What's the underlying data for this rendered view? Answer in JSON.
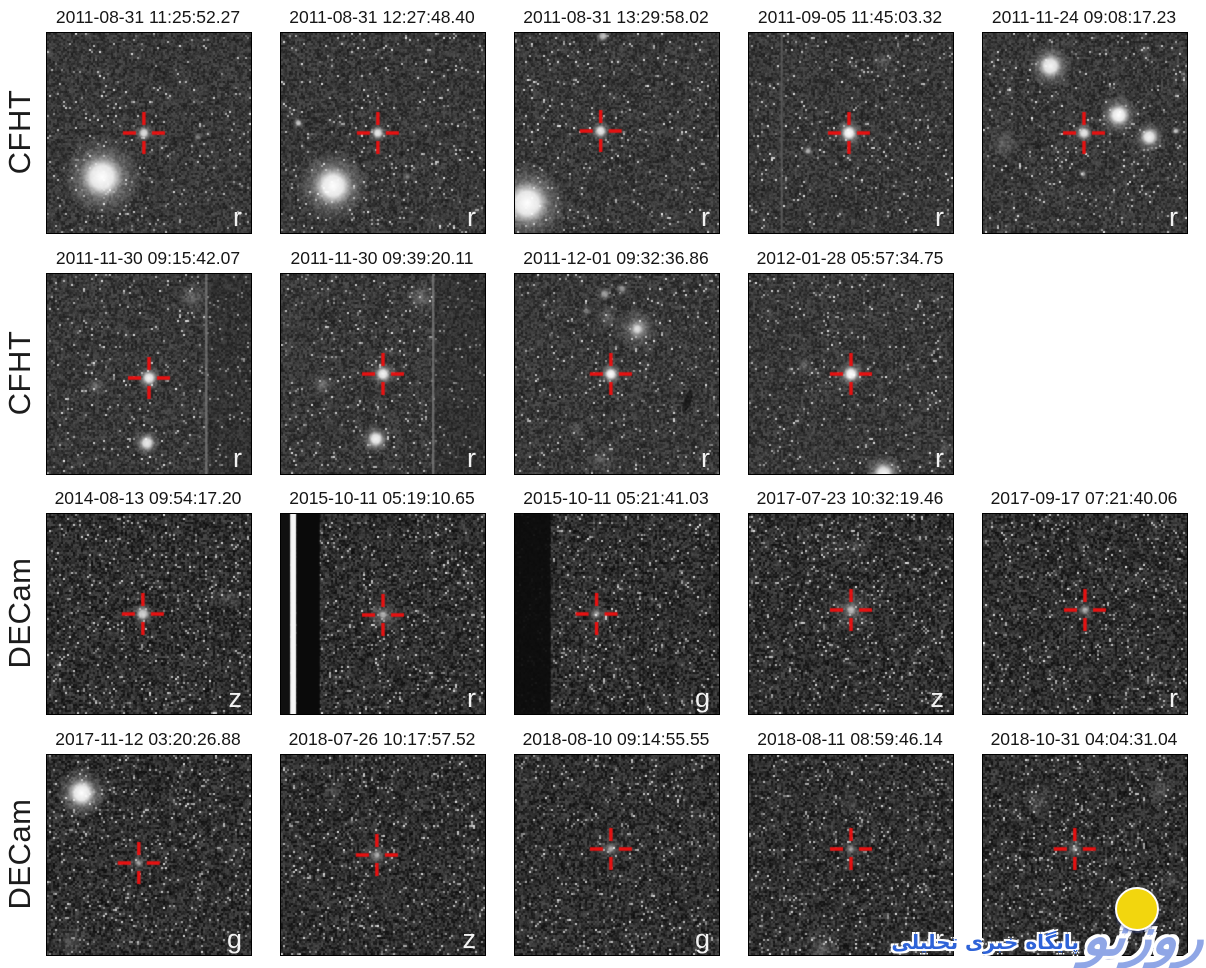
{
  "figure": {
    "rows": [
      {
        "label": "CFHT",
        "panels": [
          {
            "title": "2011-08-31 11:25:52.27",
            "band": "r",
            "cross": [
              0.475,
              0.5
            ],
            "stars": [
              [
                0.27,
                0.72,
                20,
                1,
                "core"
              ],
              [
                0.475,
                0.5,
                5,
                0.85,
                "core"
              ],
              [
                0.74,
                0.52,
                2.5,
                0.4,
                "core"
              ]
            ]
          },
          {
            "title": "2011-08-31 12:27:48.40",
            "band": "r",
            "cross": [
              0.475,
              0.5
            ],
            "stars": [
              [
                0.255,
                0.765,
                18,
                1,
                "core"
              ],
              [
                0.475,
                0.5,
                5,
                0.9,
                "core"
              ],
              [
                0.085,
                0.45,
                3,
                0.75,
                "core"
              ],
              [
                0.62,
                0.72,
                2.5,
                0.4,
                "core"
              ]
            ]
          },
          {
            "title": "2011-08-31 13:29:58.02",
            "band": "r",
            "cross": [
              0.42,
              0.49
            ],
            "stars": [
              [
                0.06,
                0.85,
                20,
                1,
                "core"
              ],
              [
                0.42,
                0.49,
                5.5,
                0.9,
                "core"
              ],
              [
                0.43,
                0.015,
                4,
                0.7,
                "core"
              ]
            ]
          },
          {
            "title": "2011-09-05 11:45:03.32",
            "band": "r",
            "cross": [
              0.49,
              0.5
            ],
            "lines": [
              {
                "x": 0.155,
                "w": 0.01,
                "c": "rgba(90,90,90,0.95)"
              }
            ],
            "stars": [
              [
                0.49,
                0.5,
                7,
                1,
                "core"
              ],
              [
                0.29,
                0.59,
                3,
                0.65,
                "core"
              ],
              [
                0.66,
                0.14,
                6,
                0.35,
                "fuzzy"
              ]
            ]
          },
          {
            "title": "2011-11-24 09:08:17.23",
            "band": "r",
            "cross": [
              0.495,
              0.5
            ],
            "stars": [
              [
                0.33,
                0.165,
                11,
                0.95,
                "core"
              ],
              [
                0.665,
                0.41,
                10,
                1,
                "core"
              ],
              [
                0.815,
                0.52,
                8,
                0.95,
                "core"
              ],
              [
                0.945,
                0.49,
                2.5,
                0.75,
                "core"
              ],
              [
                0.1,
                0.555,
                9,
                0.45,
                "fuzzy"
              ],
              [
                0.79,
                0.085,
                4,
                0.35,
                "fuzzy"
              ],
              [
                0.495,
                0.5,
                5.5,
                0.9,
                "core"
              ],
              [
                0.49,
                0.705,
                2.5,
                0.55,
                "core"
              ]
            ]
          }
        ]
      },
      {
        "label": "CFHT",
        "panels": [
          {
            "title": "2011-11-30 09:15:42.07",
            "band": "r",
            "cross": [
              0.5,
              0.52
            ],
            "lines": [
              {
                "x": 0.775,
                "w": 0.012,
                "c": "rgba(125,125,125,0.75)"
              }
            ],
            "rects": [
              {
                "x": 0.787,
                "w": 0.213,
                "c": "rgba(35,35,35,0.28)"
              }
            ],
            "stars": [
              [
                0.71,
                0.115,
                8,
                0.5,
                "fuzzy"
              ],
              [
                0.24,
                0.56,
                6,
                0.5,
                "fuzzy"
              ],
              [
                0.49,
                0.845,
                7,
                0.9,
                "core"
              ],
              [
                0.5,
                0.52,
                6.5,
                0.95,
                "core"
              ]
            ]
          },
          {
            "title": "2011-11-30 09:39:20.11",
            "band": "r",
            "cross": [
              0.5,
              0.5
            ],
            "lines": [
              {
                "x": 0.74,
                "w": 0.012,
                "c": "rgba(125,125,125,0.75)"
              }
            ],
            "rects": [
              {
                "x": 0.752,
                "w": 0.248,
                "c": "rgba(35,35,35,0.28)"
              }
            ],
            "stars": [
              [
                0.69,
                0.115,
                8,
                0.55,
                "fuzzy"
              ],
              [
                0.205,
                0.55,
                6,
                0.6,
                "fuzzy"
              ],
              [
                0.465,
                0.825,
                7.5,
                0.95,
                "core"
              ],
              [
                0.5,
                0.5,
                6.5,
                0.95,
                "core"
              ]
            ]
          },
          {
            "title": "2011-12-01 09:32:36.86",
            "band": "r",
            "cross": [
              0.47,
              0.5
            ],
            "ellipses": [
              {
                "x": 0.845,
                "y": 0.635,
                "rx": 3.5,
                "ry": 12,
                "rot": 20,
                "c": "rgba(5,5,5,0.55)"
              }
            ],
            "stars": [
              [
                0.6,
                0.275,
                11,
                0.9,
                "fuzzy"
              ],
              [
                0.6,
                0.275,
                5,
                0.7,
                "core"
              ],
              [
                0.455,
                0.215,
                6,
                0.45,
                "fuzzy"
              ],
              [
                0.44,
                0.1,
                4,
                0.55,
                "core"
              ],
              [
                0.525,
                0.075,
                3.5,
                0.5,
                "core"
              ],
              [
                0.35,
                0.185,
                3,
                0.4,
                "core"
              ],
              [
                0.3,
                0.78,
                6,
                0.3,
                "fuzzy"
              ],
              [
                0.42,
                0.93,
                7,
                0.35,
                "fuzzy"
              ],
              [
                0.47,
                0.5,
                6,
                1,
                "core"
              ]
            ]
          },
          {
            "title": "2012-01-28 05:57:34.75",
            "band": "r",
            "cross": [
              0.5,
              0.5
            ],
            "stars": [
              [
                0.27,
                0.46,
                5,
                0.5,
                "fuzzy"
              ],
              [
                0.5,
                0.5,
                7,
                1,
                "core"
              ],
              [
                0.66,
                1.0,
                10,
                0.95,
                "core"
              ],
              [
                0.96,
                0.87,
                5,
                0.4,
                "fuzzy"
              ]
            ]
          }
        ]
      },
      {
        "label": "DECam",
        "panels": [
          {
            "title": "2014-08-13 09:54:17.20",
            "band": "z",
            "cross": [
              0.47,
              0.5
            ],
            "stars": [
              [
                0.47,
                0.5,
                6,
                0.8,
                "core"
              ],
              [
                0.89,
                0.42,
                7,
                0.3,
                "fuzzy"
              ]
            ]
          },
          {
            "title": "2015-10-11 05:19:10.65",
            "band": "r",
            "cross": [
              0.5,
              0.505
            ],
            "rects": [
              {
                "x": 0,
                "w": 0.045,
                "c": "#101010"
              },
              {
                "x": 0.045,
                "w": 0.03,
                "c": "#f6f6f6"
              },
              {
                "x": 0.075,
                "w": 0.115,
                "c": "#0a0a0a"
              }
            ],
            "stars": [
              [
                0.5,
                0.505,
                10,
                0.5,
                "fuzzy"
              ],
              [
                0.5,
                0.505,
                3.5,
                0.55,
                "core"
              ]
            ]
          },
          {
            "title": "2015-10-11 05:21:41.03",
            "band": "g",
            "cross": [
              0.4,
              0.5
            ],
            "rects": [
              {
                "x": 0,
                "w": 0.175,
                "c": "rgba(12,12,12,0.93)"
              }
            ],
            "lines": [
              {
                "x": 0.625,
                "w": 0.007,
                "c": "rgba(15,15,15,0.5)"
              }
            ],
            "stars": [
              [
                0.4,
                0.5,
                7,
                0.45,
                "fuzzy"
              ],
              [
                0.4,
                0.5,
                3,
                0.45,
                "core"
              ]
            ]
          },
          {
            "title": "2017-07-23 10:32:19.46",
            "band": "z",
            "cross": [
              0.5,
              0.48
            ],
            "stars": [
              [
                0.5,
                0.48,
                12,
                0.5,
                "fuzzy"
              ],
              [
                0.5,
                0.48,
                4,
                0.6,
                "core"
              ],
              [
                0.52,
                0.17,
                7,
                0.3,
                "fuzzy"
              ]
            ]
          },
          {
            "title": "2017-09-17 07:21:40.06",
            "band": "r",
            "cross": [
              0.5,
              0.48
            ],
            "stars": [
              [
                0.5,
                0.48,
                7,
                0.5,
                "fuzzy"
              ],
              [
                0.5,
                0.48,
                3,
                0.5,
                "core"
              ]
            ]
          }
        ]
      },
      {
        "label": "DECam",
        "panels": [
          {
            "title": "2017-11-12 03:20:26.88",
            "band": "g",
            "cross": [
              0.45,
              0.54
            ],
            "stars": [
              [
                0.17,
                0.19,
                13,
                1,
                "core"
              ],
              [
                0.45,
                0.54,
                6,
                0.45,
                "fuzzy"
              ],
              [
                0.45,
                0.54,
                2.5,
                0.5,
                "core"
              ],
              [
                0.12,
                0.93,
                8,
                0.35,
                "fuzzy"
              ]
            ]
          },
          {
            "title": "2018-07-26 10:17:57.52",
            "band": "z",
            "cross": [
              0.47,
              0.5
            ],
            "stars": [
              [
                0.47,
                0.5,
                8,
                0.5,
                "fuzzy"
              ],
              [
                0.47,
                0.5,
                3,
                0.5,
                "core"
              ],
              [
                0.25,
                0.18,
                6,
                0.3,
                "fuzzy"
              ]
            ]
          },
          {
            "title": "2018-08-10 09:14:55.55",
            "band": "g",
            "cross": [
              0.47,
              0.47
            ],
            "stars": [
              [
                0.47,
                0.47,
                7,
                0.5,
                "fuzzy"
              ],
              [
                0.47,
                0.47,
                3,
                0.55,
                "core"
              ]
            ]
          },
          {
            "title": "2018-08-11 08:59:46.14",
            "band": "r",
            "cross": [
              0.5,
              0.47
            ],
            "stars": [
              [
                0.5,
                0.47,
                6,
                0.45,
                "fuzzy"
              ],
              [
                0.5,
                0.47,
                2.5,
                0.5,
                "core"
              ],
              [
                0.5,
                0.25,
                6,
                0.3,
                "fuzzy"
              ],
              [
                0.36,
                0.97,
                9,
                0.5,
                "fuzzy"
              ]
            ]
          },
          {
            "title": "2018-10-31 04:04:31.04",
            "band": "",
            "cross": [
              0.45,
              0.47
            ],
            "stars": [
              [
                0.45,
                0.47,
                7,
                0.45,
                "fuzzy"
              ],
              [
                0.45,
                0.47,
                2.5,
                0.45,
                "core"
              ],
              [
                0.28,
                0.23,
                9,
                0.35,
                "fuzzy"
              ],
              [
                0.87,
                0.18,
                8,
                0.4,
                "fuzzy"
              ],
              [
                0.93,
                0.63,
                6,
                0.3,
                "fuzzy"
              ]
            ]
          }
        ]
      }
    ]
  },
  "watermark": {
    "logo_text": "روزنو",
    "subtitle": "پایگاه خبری تحلیلی",
    "circle_color": "#f2d60e",
    "logo_color": "#8fa6e6",
    "subtitle_color": "#2e63d8"
  },
  "colors": {
    "crosshair": "#e81111",
    "band_letter": "#f2f2f2",
    "title_text": "#161616",
    "row_label_text": "#1c1c1c",
    "background": "#ffffff"
  },
  "noise_profiles": {
    "CFHT": {
      "base": 56,
      "std": 24,
      "speckle": 0.03
    },
    "DECam": {
      "base": 46,
      "std": 30,
      "speckle": 0.05
    }
  }
}
